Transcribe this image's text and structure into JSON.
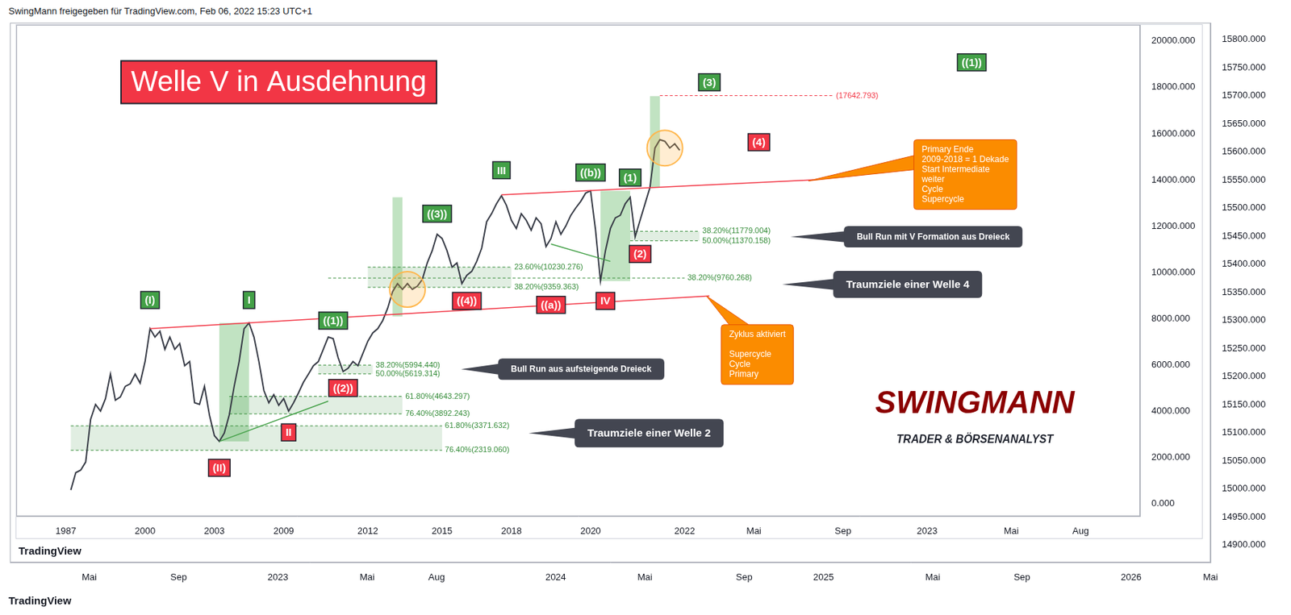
{
  "header": "SwingMann freigegeben für TradingView.com, Feb 06, 2022 15:23 UTC+1",
  "chart_data": [
    {
      "type": "line",
      "brand": "TradingView",
      "categories": [
        null,
        null,
        null,
        null,
        null,
        null,
        null,
        null,
        "Mai",
        null,
        null,
        null,
        null,
        null,
        null,
        null,
        null,
        "Sep",
        null,
        null,
        null,
        null,
        null,
        null,
        null,
        null,
        null,
        "2023",
        null,
        null,
        null,
        null,
        null,
        null,
        null,
        null,
        "Mai",
        null,
        null,
        null,
        null,
        null,
        null,
        "Aug",
        null,
        null,
        null,
        null,
        null,
        null,
        null,
        null,
        null,
        null,
        null,
        "2024",
        null,
        null,
        null,
        null,
        null,
        null,
        null,
        null,
        "Mai",
        null,
        null,
        null,
        null,
        null,
        null,
        null,
        null,
        null,
        "Sep",
        null,
        null,
        null,
        null,
        null,
        null,
        null,
        "2025",
        null,
        null,
        null,
        null,
        null,
        null,
        null,
        null,
        null,
        null,
        "Mai",
        null,
        null,
        null,
        null,
        null,
        null,
        null,
        null,
        "Sep",
        null,
        null,
        null,
        null,
        null,
        null,
        null,
        null,
        null,
        null,
        "2026",
        null,
        null,
        null,
        null,
        null,
        null,
        null,
        "Mai"
      ],
      "series": [],
      "ylim": [
        14869,
        15830
      ],
      "yticks": [
        {
          "value": 14900,
          "label": "14900.000"
        },
        {
          "value": 14950,
          "label": "14950.000"
        },
        {
          "value": 15000,
          "label": "15000.000"
        },
        {
          "value": 15050,
          "label": "15050.000"
        },
        {
          "value": 15100,
          "label": "15100.000"
        },
        {
          "value": 15150,
          "label": "15150.000"
        },
        {
          "value": 15200,
          "label": "15200.000"
        },
        {
          "value": 15250,
          "label": "15250.000"
        },
        {
          "value": 15300,
          "label": "15300.000"
        },
        {
          "value": 15350,
          "label": "15350.000"
        },
        {
          "value": 15400,
          "label": "15400.000"
        },
        {
          "value": 15450,
          "label": "15450.000"
        },
        {
          "value": 15500,
          "label": "15500.000"
        },
        {
          "value": 15550,
          "label": "15550.000"
        },
        {
          "value": 15600,
          "label": "15600.000"
        },
        {
          "value": 15650,
          "label": "15650.000"
        },
        {
          "value": 15700,
          "label": "15700.000"
        },
        {
          "value": 15750,
          "label": "15750.000"
        },
        {
          "value": 15800,
          "label": "15800.000"
        }
      ],
      "grid": false
    },
    {
      "type": "line",
      "title": "Welle V in Ausdehnung",
      "brand": "TradingView",
      "categories": [
        null,
        null,
        null,
        null,
        null,
        null,
        null,
        null,
        null,
        null,
        "1987",
        null,
        null,
        null,
        null,
        null,
        null,
        null,
        null,
        null,
        null,
        null,
        null,
        null,
        null,
        null,
        "2000",
        null,
        null,
        null,
        null,
        null,
        null,
        null,
        null,
        null,
        null,
        null,
        null,
        null,
        "2003",
        null,
        null,
        null,
        null,
        null,
        null,
        null,
        null,
        null,
        null,
        null,
        null,
        null,
        "2009",
        null,
        null,
        null,
        null,
        null,
        null,
        null,
        null,
        null,
        null,
        null,
        null,
        null,
        null,
        null,
        null,
        "2012",
        null,
        null,
        null,
        null,
        null,
        null,
        null,
        null,
        null,
        null,
        null,
        null,
        null,
        null,
        "2015",
        null,
        null,
        null,
        null,
        null,
        null,
        null,
        null,
        null,
        null,
        null,
        null,
        null,
        "2018",
        null,
        null,
        null,
        null,
        null,
        null,
        null,
        null,
        null,
        null,
        null,
        null,
        null,
        null,
        null,
        "2020",
        null,
        null,
        null,
        null,
        null,
        null,
        null,
        null,
        null,
        null,
        null,
        null,
        null,
        null,
        null,
        null,
        null,
        null,
        "2022",
        null,
        null,
        null,
        null,
        null,
        null,
        null,
        null,
        null,
        null,
        null,
        null,
        null,
        "Mai",
        null,
        null,
        null,
        null,
        null,
        null,
        null,
        null,
        null,
        null,
        null,
        null,
        null,
        null,
        null,
        null,
        null,
        "Sep",
        null,
        null,
        null,
        null,
        null,
        null,
        null,
        null,
        null,
        null,
        null,
        null,
        null,
        null,
        null,
        null,
        "2023",
        null,
        null,
        null,
        null,
        null,
        null,
        null,
        null,
        null,
        null,
        null,
        null,
        null,
        null,
        null,
        null,
        "Mai",
        null,
        null,
        null,
        null,
        null,
        null,
        null,
        null,
        null,
        null,
        null,
        null,
        null,
        "Aug",
        null,
        null,
        null,
        null,
        null,
        null,
        null,
        null,
        null,
        null,
        null,
        null
      ],
      "values": [
        null,
        null,
        null,
        null,
        null,
        null,
        null,
        null,
        null,
        null,
        null,
        600,
        1350,
        1460,
        1810,
        3660,
        4300,
        4010,
        4550,
        5610,
        4480,
        4620,
        5080,
        5190,
        5610,
        5220,
        6150,
        7570,
        7210,
        7460,
        6680,
        7210,
        6680,
        6930,
        5970,
        6150,
        4370,
        4300,
        5080,
        3840,
        2950,
        2700,
        3060,
        3840,
        5080,
        6150,
        7570,
        7820,
        7210,
        6150,
        4900,
        4370,
        4720,
        4260,
        4550,
        4010,
        4370,
        4800,
        5260,
        5610,
        5970,
        6150,
        6680,
        7210,
        7140,
        6320,
        5720,
        5860,
        6150,
        5970,
        6500,
        7030,
        7390,
        7570,
        7920,
        8450,
        9170,
        9520,
        9270,
        9520,
        9270,
        9410,
        9700,
        10410,
        10940,
        11650,
        11470,
        10940,
        10230,
        10410,
        9520,
        9880,
        10050,
        10480,
        11050,
        12190,
        12540,
        12970,
        13320,
        12900,
        12260,
        11900,
        12540,
        12260,
        11830,
        12360,
        12110,
        11120,
        11470,
        12190,
        11650,
        12010,
        12470,
        12790,
        13070,
        13430,
        13530,
        11830,
        9630,
        10940,
        11900,
        12360,
        12470,
        12970,
        13250,
        11540,
        12260,
        12970,
        13680,
        15380,
        15740,
        15670,
        15380,
        15560,
        15280,
        null,
        null,
        null,
        null,
        null,
        null,
        null,
        null,
        null,
        null,
        null,
        null,
        null,
        null,
        null,
        null,
        null,
        null,
        null,
        null,
        null,
        null,
        null,
        null,
        null,
        null,
        null,
        null,
        null,
        null,
        null,
        null,
        null,
        null,
        null,
        null,
        null,
        null,
        null,
        null,
        null,
        null,
        null,
        null,
        null,
        null,
        null,
        null,
        null,
        null,
        null,
        null,
        null,
        null,
        null,
        null,
        null,
        null,
        null,
        null,
        null,
        null,
        null,
        null,
        null,
        null,
        null,
        null,
        null,
        null,
        null,
        null,
        null,
        null,
        null,
        null,
        null,
        null,
        null,
        null,
        null,
        null,
        null,
        null,
        null,
        null,
        null,
        null,
        null,
        null,
        null,
        null,
        null
      ],
      "color": "#363a45",
      "ylim": [
        -530,
        20700
      ],
      "yticks": [
        {
          "value": 0,
          "label": "0.000"
        },
        {
          "value": 2000,
          "label": "2000.000"
        },
        {
          "value": 4000,
          "label": "4000.000"
        },
        {
          "value": 6000,
          "label": "6000.000"
        },
        {
          "value": 8000,
          "label": "8000.000"
        },
        {
          "value": 10000,
          "label": "10000.000"
        },
        {
          "value": 12000,
          "label": "12000.000"
        },
        {
          "value": 14000,
          "label": "14000.000"
        },
        {
          "value": 16000,
          "label": "16000.000"
        },
        {
          "value": 18000,
          "label": "18000.000"
        },
        {
          "value": 20000,
          "label": "20000.000"
        }
      ],
      "grid": false,
      "wave_labels": [
        {
          "text": "(I)",
          "index": 27,
          "value": 8810,
          "color": "#43a047"
        },
        {
          "text": "I",
          "index": 47,
          "value": 8810,
          "color": "#43a047"
        },
        {
          "text": "((1))",
          "index": 64,
          "value": 7920,
          "color": "#43a047"
        },
        {
          "text": "((3))",
          "index": 85,
          "value": 12540,
          "color": "#43a047"
        },
        {
          "text": "III",
          "index": 98,
          "value": 14420,
          "color": "#43a047"
        },
        {
          "text": "((b))",
          "index": 116,
          "value": 14320,
          "color": "#43a047"
        },
        {
          "text": "(1)",
          "index": 124,
          "value": 14100,
          "color": "#43a047"
        },
        {
          "text": "(3)",
          "index": 140,
          "value": 18220,
          "color": "#43a047"
        },
        {
          "text": "((1))",
          "index": 193,
          "value": 19080,
          "color": "#43a047"
        },
        {
          "text": "(II)",
          "index": 41,
          "value": 1560,
          "color": "#f23645"
        },
        {
          "text": "II",
          "index": 55,
          "value": 3090,
          "color": "#f23645"
        },
        {
          "text": "((2))",
          "index": 66,
          "value": 5010,
          "color": "#f23645"
        },
        {
          "text": "((4))",
          "index": 91,
          "value": 8770,
          "color": "#f23645"
        },
        {
          "text": "((a))",
          "index": 108,
          "value": 8600,
          "color": "#f23645"
        },
        {
          "text": "IV",
          "index": 119,
          "value": 8770,
          "color": "#f23645"
        },
        {
          "text": "(2)",
          "index": 126,
          "value": 10800,
          "color": "#f23645"
        },
        {
          "text": "(4)",
          "index": 150,
          "value": 15630,
          "color": "#f23645"
        }
      ],
      "fib_zones": [
        {
          "from": 124,
          "to": 138,
          "color": "#388e3c",
          "levels": [
            {
              "label": "38.20%(11779.004)",
              "value": 11779.004
            },
            {
              "label": "50.00%(11370.158)",
              "value": 11370.158
            }
          ]
        },
        {
          "from": 71,
          "to": 100,
          "color": "#388e3c",
          "levels": [
            {
              "label": "23.60%(10230.276)",
              "value": 10230.276
            },
            {
              "label": "38.20%(9359.363)",
              "value": 9359.363
            }
          ]
        },
        {
          "from": 63,
          "to": 135,
          "color": "#388e3c",
          "levels": [
            {
              "label": "38.20%(9760.268)",
              "value": 9760.268
            }
          ]
        },
        {
          "from": 61,
          "to": 72,
          "color": "#388e3c",
          "levels": [
            {
              "label": "38.20%(5994.440)",
              "value": 5994.44
            },
            {
              "label": "50.00%(5619.314)",
              "value": 5619.314
            }
          ]
        },
        {
          "from": 43,
          "to": 78,
          "color": "#388e3c",
          "levels": [
            {
              "label": "61.80%(4643.297)",
              "value": 4643.297
            },
            {
              "label": "76.40%(3892.243)",
              "value": 3892.243
            }
          ]
        },
        {
          "from": 11,
          "to": 86,
          "color": "#388e3c",
          "levels": [
            {
              "label": "61.80%(3371.632)",
              "value": 3371.632
            },
            {
              "label": "76.40%(2319.060)",
              "value": 2319.06
            }
          ]
        },
        {
          "from": 130,
          "to": 165,
          "color": "#f23645",
          "levels": [
            {
              "label": "(17642.793)",
              "value": 17642.793
            }
          ]
        }
      ],
      "boxes": [
        {
          "from": 41,
          "to": 47,
          "low": 2700,
          "high": 7820,
          "color": "#4caf50"
        },
        {
          "from": 76,
          "to": 78,
          "low": 8100,
          "high": 13250,
          "color": "#4caf50"
        },
        {
          "from": 118,
          "to": 124,
          "low": 9630,
          "high": 13530,
          "color": "#4caf50"
        },
        {
          "from": 128,
          "to": 130,
          "low": 13680,
          "high": 17620,
          "color": "#4caf50"
        }
      ],
      "trend_lines": [
        {
          "from": 27,
          "to": 140,
          "start": 7570,
          "end": 8990,
          "color": "#f23645"
        },
        {
          "from": 98,
          "to": 161,
          "start": 13360,
          "end": 14000,
          "color": "#f23645"
        },
        {
          "from": 41,
          "to": 63,
          "start": 2700,
          "end": 4440,
          "color": "#43a047"
        },
        {
          "from": 108,
          "to": 120,
          "start": 11230,
          "end": 10480,
          "color": "#43a047"
        }
      ],
      "circles": [
        {
          "index": 79,
          "value": 9270
        },
        {
          "index": 131,
          "value": 15380
        }
      ],
      "callouts": [
        "Bull Run mit V Formation aus Dreieck",
        "Traumziele einer Welle 4",
        "Bull Run aus aufsteigende Dreieck",
        "Traumziele einer Welle 2"
      ],
      "notes": [
        [
          "Primary Ende",
          "2009-2018 = 1 Dekade",
          "Start Intermediate",
          "weiter",
          "Cycle",
          "Supercycle"
        ],
        [
          "Zyklus aktiviert",
          "Supercycle",
          "Cycle",
          "Primary"
        ]
      ],
      "logo": {
        "name": "SWINGMANN",
        "tagline": "TRADER & BÖRSENANALYST"
      }
    }
  ]
}
